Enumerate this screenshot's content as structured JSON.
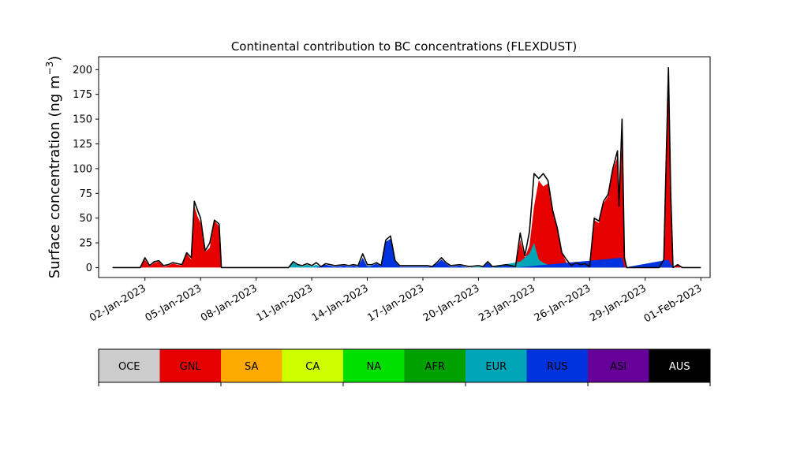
{
  "chart_data": {
    "type": "area",
    "title": "Continental contribution to BC concentrations (FLEXDUST)",
    "ylabel": "Surface concentration (ng m",
    "ylabel_exp": "−3",
    "ylabel_close": ")",
    "xlabel": "",
    "ylim": [
      -10,
      213
    ],
    "xlim": [
      "2022-12-30T12:00",
      "2023-02-01T12:00"
    ],
    "y_ticks": [
      0,
      25,
      50,
      75,
      100,
      125,
      150,
      175,
      200
    ],
    "y_tick_labels": [
      "0",
      "25",
      "50",
      "75",
      "100",
      "125",
      "150",
      "175",
      "200"
    ],
    "x_ticks": [
      "2023-01-02",
      "2023-01-05",
      "2023-01-08",
      "2023-01-11",
      "2023-01-14",
      "2023-01-17",
      "2023-01-20",
      "2023-01-23",
      "2023-01-26",
      "2023-01-29",
      "2023-02-01"
    ],
    "x_tick_labels": [
      "02-Jan-2023",
      "05-Jan-2023",
      "08-Jan-2023",
      "11-Jan-2023",
      "14-Jan-2023",
      "17-Jan-2023",
      "20-Jan-2023",
      "23-Jan-2023",
      "26-Jan-2023",
      "29-Jan-2023",
      "01-Feb-2023"
    ],
    "grid": false,
    "series": [
      {
        "name": "OCE",
        "color": "#cccccc",
        "values": []
      },
      {
        "name": "GNL",
        "color": "#e60000",
        "values": [
          [
            "2023-01-01T06:00",
            0
          ],
          [
            "2023-01-01T18:00",
            0
          ],
          [
            "2023-01-02T00:00",
            8
          ],
          [
            "2023-01-02T06:00",
            1
          ],
          [
            "2023-01-02T12:00",
            5
          ],
          [
            "2023-01-02T18:00",
            6
          ],
          [
            "2023-01-03T00:00",
            1
          ],
          [
            "2023-01-03T06:00",
            2
          ],
          [
            "2023-01-03T12:00",
            4
          ],
          [
            "2023-01-03T18:00",
            3
          ],
          [
            "2023-01-04T00:00",
            2
          ],
          [
            "2023-01-04T06:00",
            14
          ],
          [
            "2023-01-04T12:00",
            8
          ],
          [
            "2023-01-04T16:00",
            62
          ],
          [
            "2023-01-04T20:00",
            52
          ],
          [
            "2023-01-05T00:00",
            45
          ],
          [
            "2023-01-05T06:00",
            16
          ],
          [
            "2023-01-05T12:00",
            20
          ],
          [
            "2023-01-05T18:00",
            47
          ],
          [
            "2023-01-06T00:00",
            42
          ],
          [
            "2023-01-06T03:00",
            0
          ],
          [
            "2023-01-21T06:00",
            0
          ],
          [
            "2023-01-22T00:00",
            0
          ],
          [
            "2023-01-22T06:00",
            28
          ],
          [
            "2023-01-22T12:00",
            10
          ],
          [
            "2023-01-22T18:00",
            22
          ],
          [
            "2023-01-23T00:00",
            62
          ],
          [
            "2023-01-23T06:00",
            88
          ],
          [
            "2023-01-23T12:00",
            82
          ],
          [
            "2023-01-23T18:00",
            85
          ],
          [
            "2023-01-24T00:00",
            58
          ],
          [
            "2023-01-24T06:00",
            40
          ],
          [
            "2023-01-24T12:00",
            15
          ],
          [
            "2023-01-24T18:00",
            5
          ],
          [
            "2023-01-25T00:00",
            0
          ],
          [
            "2023-01-25T06:00",
            3
          ],
          [
            "2023-01-25T12:00",
            1
          ],
          [
            "2023-01-25T18:00",
            2
          ],
          [
            "2023-01-26T00:00",
            0
          ],
          [
            "2023-01-26T06:00",
            48
          ],
          [
            "2023-01-26T12:00",
            45
          ],
          [
            "2023-01-26T18:00",
            65
          ],
          [
            "2023-01-27T00:00",
            72
          ],
          [
            "2023-01-27T06:00",
            98
          ],
          [
            "2023-01-27T12:00",
            112
          ],
          [
            "2023-01-27T14:00",
            60
          ],
          [
            "2023-01-27T18:00",
            128
          ],
          [
            "2023-01-27T21:00",
            10
          ],
          [
            "2023-01-28T00:00",
            0
          ],
          [
            "2023-01-29T00:00",
            0
          ],
          [
            "2023-01-29T18:00",
            0
          ],
          [
            "2023-01-30T00:00",
            5
          ],
          [
            "2023-01-30T06:00",
            190
          ],
          [
            "2023-01-30T09:00",
            70
          ],
          [
            "2023-01-30T12:00",
            0
          ],
          [
            "2023-01-30T18:00",
            2
          ],
          [
            "2023-01-31T00:00",
            0
          ],
          [
            "2023-02-01T00:00",
            0
          ]
        ]
      },
      {
        "name": "SA",
        "color": "#ffaa00",
        "values": []
      },
      {
        "name": "CA",
        "color": "#ccff00",
        "values": []
      },
      {
        "name": "NA",
        "color": "#00e000",
        "values": []
      },
      {
        "name": "AFR",
        "color": "#00a000",
        "values": []
      },
      {
        "name": "EUR",
        "color": "#00a6b8",
        "values": [
          [
            "2023-01-09T18:00",
            0
          ],
          [
            "2023-01-10T00:00",
            5
          ],
          [
            "2023-01-10T06:00",
            2
          ],
          [
            "2023-01-10T12:00",
            1
          ],
          [
            "2023-01-10T18:00",
            3
          ],
          [
            "2023-01-11T00:00",
            1
          ],
          [
            "2023-01-11T06:00",
            3
          ],
          [
            "2023-01-11T12:00",
            0
          ],
          [
            "2023-01-13T12:00",
            0
          ],
          [
            "2023-01-14T00:00",
            2
          ],
          [
            "2023-01-14T12:00",
            0
          ],
          [
            "2023-01-19T12:00",
            0
          ],
          [
            "2023-01-20T00:00",
            1
          ],
          [
            "2023-01-20T12:00",
            0
          ],
          [
            "2023-01-22T06:00",
            6
          ],
          [
            "2023-01-22T18:00",
            14
          ],
          [
            "2023-01-23T00:00",
            25
          ],
          [
            "2023-01-23T06:00",
            8
          ],
          [
            "2023-01-23T12:00",
            5
          ],
          [
            "2023-01-23T18:00",
            3
          ],
          [
            "2023-01-24T06:00",
            0
          ],
          [
            "2023-01-25T00:00",
            2
          ],
          [
            "2023-01-25T12:00",
            1
          ],
          [
            "2023-01-27T12:00",
            0
          ],
          [
            "2023-01-27T18:00",
            8
          ],
          [
            "2023-01-27T21:00",
            0
          ]
        ]
      },
      {
        "name": "RUS",
        "color": "#0033dd",
        "values": [
          [
            "2023-01-11T06:00",
            0
          ],
          [
            "2023-01-11T18:00",
            3
          ],
          [
            "2023-01-12T06:00",
            1
          ],
          [
            "2023-01-12T18:00",
            2
          ],
          [
            "2023-01-13T00:00",
            1
          ],
          [
            "2023-01-13T06:00",
            2
          ],
          [
            "2023-01-13T12:00",
            1
          ],
          [
            "2023-01-13T18:00",
            10
          ],
          [
            "2023-01-14T00:00",
            1
          ],
          [
            "2023-01-14T06:00",
            2
          ],
          [
            "2023-01-14T12:00",
            4
          ],
          [
            "2023-01-14T18:00",
            1
          ],
          [
            "2023-01-15T00:00",
            26
          ],
          [
            "2023-01-15T06:00",
            29
          ],
          [
            "2023-01-15T12:00",
            6
          ],
          [
            "2023-01-15T18:00",
            1
          ],
          [
            "2023-01-16T06:00",
            1
          ],
          [
            "2023-01-16T18:00",
            1
          ],
          [
            "2023-01-17T06:00",
            1
          ],
          [
            "2023-01-17T12:00",
            1
          ],
          [
            "2023-01-17T18:00",
            4
          ],
          [
            "2023-01-18T00:00",
            8
          ],
          [
            "2023-01-18T06:00",
            4
          ],
          [
            "2023-01-18T12:00",
            1
          ],
          [
            "2023-01-19T00:00",
            2
          ],
          [
            "2023-01-19T06:00",
            1
          ],
          [
            "2023-01-19T12:00",
            0
          ],
          [
            "2023-01-20T06:00",
            0
          ],
          [
            "2023-01-20T12:00",
            5
          ],
          [
            "2023-01-20T18:00",
            0
          ],
          [
            "2023-01-21T12:00",
            2
          ],
          [
            "2023-01-22T00:00",
            0
          ],
          [
            "2023-01-27T18:00",
            10
          ],
          [
            "2023-01-27T21:00",
            0
          ],
          [
            "2023-01-30T06:00",
            8
          ],
          [
            "2023-01-30T12:00",
            0
          ]
        ]
      },
      {
        "name": "ASI",
        "color": "#660099",
        "values": []
      },
      {
        "name": "AUS",
        "color": "#000000",
        "values": []
      }
    ],
    "total_outline": [
      [
        "2022-12-31T06:00",
        0
      ],
      [
        "2023-01-01T18:00",
        0
      ],
      [
        "2023-01-02T00:00",
        10
      ],
      [
        "2023-01-02T06:00",
        2
      ],
      [
        "2023-01-02T12:00",
        6
      ],
      [
        "2023-01-02T18:00",
        7
      ],
      [
        "2023-01-03T00:00",
        2
      ],
      [
        "2023-01-03T06:00",
        3
      ],
      [
        "2023-01-03T12:00",
        5
      ],
      [
        "2023-01-03T18:00",
        4
      ],
      [
        "2023-01-04T00:00",
        3
      ],
      [
        "2023-01-04T06:00",
        15
      ],
      [
        "2023-01-04T12:00",
        10
      ],
      [
        "2023-01-04T16:00",
        67
      ],
      [
        "2023-01-04T20:00",
        58
      ],
      [
        "2023-01-05T00:00",
        50
      ],
      [
        "2023-01-05T06:00",
        17
      ],
      [
        "2023-01-05T12:00",
        25
      ],
      [
        "2023-01-05T18:00",
        48
      ],
      [
        "2023-01-06T00:00",
        44
      ],
      [
        "2023-01-06T03:00",
        0
      ],
      [
        "2023-01-09T18:00",
        0
      ],
      [
        "2023-01-10T00:00",
        6
      ],
      [
        "2023-01-10T06:00",
        3
      ],
      [
        "2023-01-10T12:00",
        2
      ],
      [
        "2023-01-10T18:00",
        4
      ],
      [
        "2023-01-11T00:00",
        2
      ],
      [
        "2023-01-11T06:00",
        5
      ],
      [
        "2023-01-11T12:00",
        1
      ],
      [
        "2023-01-11T18:00",
        4
      ],
      [
        "2023-01-12T06:00",
        2
      ],
      [
        "2023-01-12T18:00",
        3
      ],
      [
        "2023-01-13T00:00",
        2
      ],
      [
        "2023-01-13T06:00",
        3
      ],
      [
        "2023-01-13T12:00",
        2
      ],
      [
        "2023-01-13T18:00",
        14
      ],
      [
        "2023-01-14T00:00",
        3
      ],
      [
        "2023-01-14T06:00",
        3
      ],
      [
        "2023-01-14T12:00",
        5
      ],
      [
        "2023-01-14T18:00",
        2
      ],
      [
        "2023-01-15T00:00",
        28
      ],
      [
        "2023-01-15T06:00",
        32
      ],
      [
        "2023-01-15T12:00",
        7
      ],
      [
        "2023-01-15T18:00",
        2
      ],
      [
        "2023-01-16T06:00",
        2
      ],
      [
        "2023-01-16T18:00",
        2
      ],
      [
        "2023-01-17T06:00",
        2
      ],
      [
        "2023-01-17T12:00",
        1
      ],
      [
        "2023-01-17T18:00",
        5
      ],
      [
        "2023-01-18T00:00",
        10
      ],
      [
        "2023-01-18T06:00",
        5
      ],
      [
        "2023-01-18T12:00",
        2
      ],
      [
        "2023-01-19T00:00",
        3
      ],
      [
        "2023-01-19T06:00",
        2
      ],
      [
        "2023-01-19T12:00",
        1
      ],
      [
        "2023-01-20T00:00",
        2
      ],
      [
        "2023-01-20T06:00",
        1
      ],
      [
        "2023-01-20T12:00",
        6
      ],
      [
        "2023-01-20T18:00",
        1
      ],
      [
        "2023-01-21T12:00",
        3
      ],
      [
        "2023-01-22T00:00",
        1
      ],
      [
        "2023-01-22T06:00",
        35
      ],
      [
        "2023-01-22T12:00",
        12
      ],
      [
        "2023-01-22T18:00",
        36
      ],
      [
        "2023-01-23T00:00",
        95
      ],
      [
        "2023-01-23T06:00",
        90
      ],
      [
        "2023-01-23T12:00",
        95
      ],
      [
        "2023-01-23T18:00",
        88
      ],
      [
        "2023-01-24T00:00",
        58
      ],
      [
        "2023-01-24T06:00",
        40
      ],
      [
        "2023-01-24T12:00",
        15
      ],
      [
        "2023-01-24T18:00",
        8
      ],
      [
        "2023-01-25T00:00",
        2
      ],
      [
        "2023-01-25T06:00",
        5
      ],
      [
        "2023-01-25T12:00",
        3
      ],
      [
        "2023-01-25T18:00",
        4
      ],
      [
        "2023-01-26T00:00",
        1
      ],
      [
        "2023-01-26T06:00",
        50
      ],
      [
        "2023-01-26T12:00",
        47
      ],
      [
        "2023-01-26T18:00",
        67
      ],
      [
        "2023-01-27T00:00",
        74
      ],
      [
        "2023-01-27T06:00",
        100
      ],
      [
        "2023-01-27T12:00",
        118
      ],
      [
        "2023-01-27T14:00",
        62
      ],
      [
        "2023-01-27T18:00",
        150
      ],
      [
        "2023-01-27T21:00",
        10
      ],
      [
        "2023-01-28T00:00",
        0
      ],
      [
        "2023-01-29T00:00",
        0
      ],
      [
        "2023-01-29T18:00",
        0
      ],
      [
        "2023-01-30T00:00",
        8
      ],
      [
        "2023-01-30T06:00",
        202
      ],
      [
        "2023-01-30T09:00",
        75
      ],
      [
        "2023-01-30T12:00",
        0
      ],
      [
        "2023-01-30T18:00",
        3
      ],
      [
        "2023-01-31T00:00",
        0
      ],
      [
        "2023-02-01T00:00",
        0
      ]
    ]
  }
}
